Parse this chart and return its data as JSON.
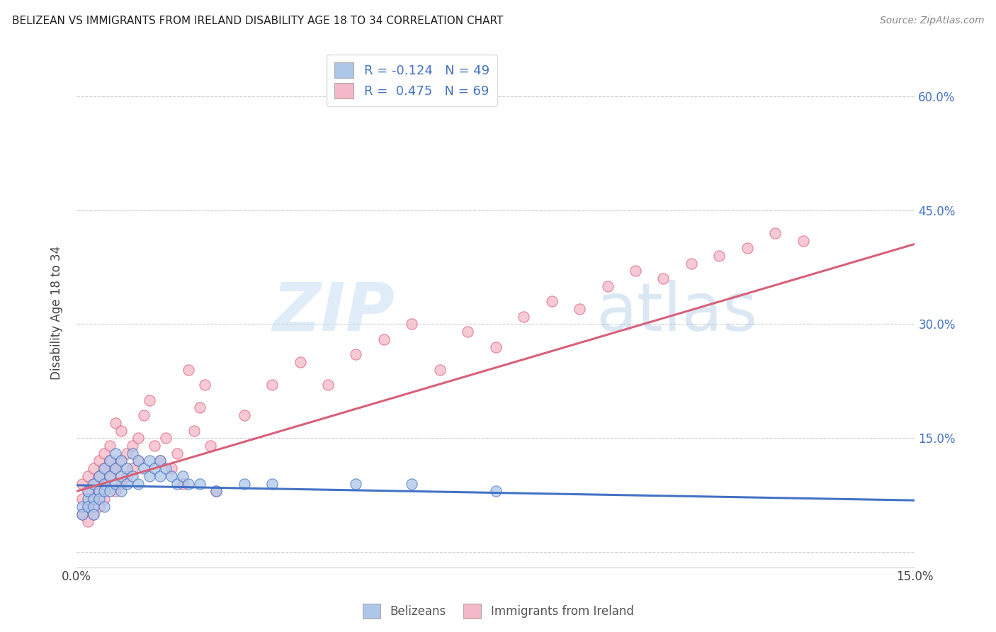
{
  "title": "BELIZEAN VS IMMIGRANTS FROM IRELAND DISABILITY AGE 18 TO 34 CORRELATION CHART",
  "source": "Source: ZipAtlas.com",
  "ylabel": "Disability Age 18 to 34",
  "xlim": [
    0.0,
    0.15
  ],
  "ylim": [
    -0.02,
    0.65
  ],
  "xticks": [
    0.0,
    0.03,
    0.06,
    0.09,
    0.12,
    0.15
  ],
  "yticks_right": [
    0.0,
    0.15,
    0.3,
    0.45,
    0.6
  ],
  "ytick_labels_right": [
    "",
    "15.0%",
    "30.0%",
    "45.0%",
    "60.0%"
  ],
  "xtick_labels": [
    "0.0%",
    "",
    "",
    "",
    "",
    "15.0%"
  ],
  "legend_labels": [
    "Belizeans",
    "Immigrants from Ireland"
  ],
  "belizean_R": "-0.124",
  "belizean_N": "49",
  "ireland_R": "0.475",
  "ireland_N": "69",
  "blue_color": "#aec6e8",
  "pink_color": "#f5b8c8",
  "blue_line_color": "#4472c4",
  "pink_line_color": "#d9607a",
  "watermark_zip": "ZIP",
  "watermark_atlas": "atlas",
  "belizean_x": [
    0.001,
    0.001,
    0.002,
    0.002,
    0.002,
    0.003,
    0.003,
    0.003,
    0.003,
    0.004,
    0.004,
    0.004,
    0.005,
    0.005,
    0.005,
    0.005,
    0.006,
    0.006,
    0.006,
    0.007,
    0.007,
    0.007,
    0.008,
    0.008,
    0.008,
    0.009,
    0.009,
    0.01,
    0.01,
    0.011,
    0.011,
    0.012,
    0.013,
    0.013,
    0.014,
    0.015,
    0.015,
    0.016,
    0.017,
    0.018,
    0.019,
    0.02,
    0.022,
    0.025,
    0.03,
    0.035,
    0.05,
    0.06,
    0.075
  ],
  "belizean_y": [
    0.06,
    0.05,
    0.07,
    0.06,
    0.08,
    0.07,
    0.09,
    0.06,
    0.05,
    0.08,
    0.1,
    0.07,
    0.09,
    0.11,
    0.08,
    0.06,
    0.1,
    0.12,
    0.08,
    0.11,
    0.13,
    0.09,
    0.12,
    0.1,
    0.08,
    0.11,
    0.09,
    0.13,
    0.1,
    0.12,
    0.09,
    0.11,
    0.1,
    0.12,
    0.11,
    0.12,
    0.1,
    0.11,
    0.1,
    0.09,
    0.1,
    0.09,
    0.09,
    0.08,
    0.09,
    0.09,
    0.09,
    0.09,
    0.08
  ],
  "ireland_x": [
    0.001,
    0.001,
    0.001,
    0.002,
    0.002,
    0.002,
    0.002,
    0.003,
    0.003,
    0.003,
    0.003,
    0.004,
    0.004,
    0.004,
    0.004,
    0.005,
    0.005,
    0.005,
    0.005,
    0.006,
    0.006,
    0.006,
    0.007,
    0.007,
    0.007,
    0.008,
    0.008,
    0.008,
    0.009,
    0.009,
    0.01,
    0.01,
    0.011,
    0.011,
    0.012,
    0.013,
    0.014,
    0.015,
    0.016,
    0.017,
    0.018,
    0.019,
    0.02,
    0.021,
    0.022,
    0.023,
    0.024,
    0.025,
    0.03,
    0.035,
    0.04,
    0.045,
    0.05,
    0.055,
    0.06,
    0.065,
    0.07,
    0.075,
    0.08,
    0.085,
    0.09,
    0.095,
    0.1,
    0.105,
    0.11,
    0.115,
    0.12,
    0.125,
    0.13
  ],
  "ireland_y": [
    0.05,
    0.07,
    0.09,
    0.06,
    0.08,
    0.1,
    0.04,
    0.07,
    0.09,
    0.11,
    0.05,
    0.08,
    0.1,
    0.12,
    0.06,
    0.09,
    0.11,
    0.13,
    0.07,
    0.1,
    0.12,
    0.14,
    0.11,
    0.08,
    0.17,
    0.12,
    0.09,
    0.16,
    0.13,
    0.1,
    0.14,
    0.11,
    0.15,
    0.12,
    0.18,
    0.2,
    0.14,
    0.12,
    0.15,
    0.11,
    0.13,
    0.09,
    0.24,
    0.16,
    0.19,
    0.22,
    0.14,
    0.08,
    0.18,
    0.22,
    0.25,
    0.22,
    0.26,
    0.28,
    0.3,
    0.24,
    0.29,
    0.27,
    0.31,
    0.33,
    0.32,
    0.35,
    0.37,
    0.36,
    0.38,
    0.39,
    0.4,
    0.42,
    0.41
  ]
}
